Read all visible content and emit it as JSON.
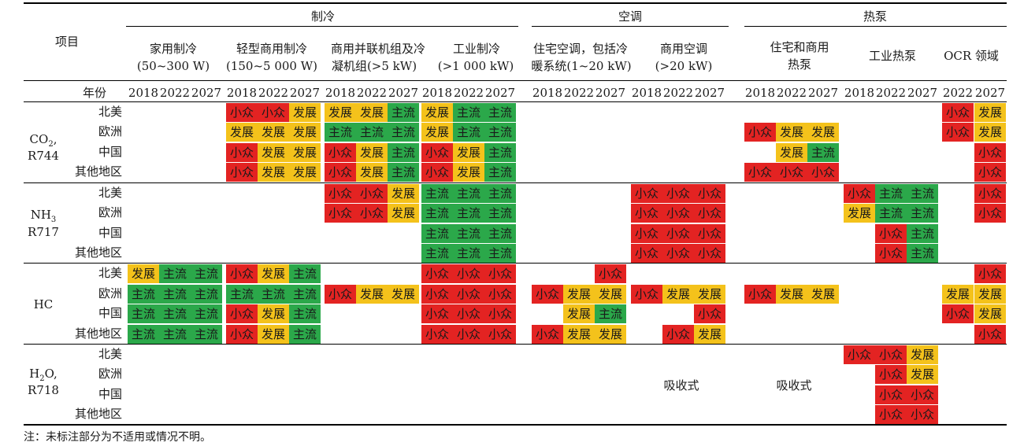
{
  "header": {
    "item": "项目",
    "groups": [
      "制冷",
      "空调",
      "热泵"
    ],
    "columns": [
      {
        "l1": "家用制冷",
        "l2": "(50~300 W)"
      },
      {
        "l1": "轻型商用制冷",
        "l2": "(150~5 000 W)"
      },
      {
        "l1": "商用并联机组及冷",
        "l2": "凝机组(>5 kW)"
      },
      {
        "l1": "工业制冷",
        "l2": "(>1 000 kW)"
      },
      {
        "l1": "住宅空调，包括冷",
        "l2": "暖系统(1~20 kW)"
      },
      {
        "l1": "商用空调",
        "l2": "(>20 kW)"
      },
      {
        "l1": "住宅和商用",
        "l2": "热泵"
      },
      {
        "l1": "工业热泵",
        "l2": ""
      },
      {
        "l1": "OCR 领域",
        "l2": ""
      }
    ],
    "year_label": "年份",
    "years": [
      "2018",
      "2022",
      "2027",
      "2018",
      "2022",
      "2027",
      "2018",
      "2022",
      "2027",
      "2018",
      "2022",
      "2027",
      "2018",
      "2022",
      "2027",
      "2018",
      "2022",
      "2027",
      "2018",
      "2022",
      "2027",
      "2018",
      "2022",
      "2027",
      "2022",
      "2027"
    ]
  },
  "refrigerants": [
    {
      "formula": "CO",
      "sub": "2",
      "tail": ",",
      "code": "R744"
    },
    {
      "formula": "NH",
      "sub": "3",
      "tail": "",
      "code": "R717"
    },
    {
      "formula": "HC",
      "sub": "",
      "tail": "",
      "code": ""
    },
    {
      "formula": "H",
      "sub": "2",
      "tail": "O,",
      "code": "R718"
    }
  ],
  "regions": [
    "北美",
    "欧洲",
    "中国",
    "其他地区"
  ],
  "legend": {
    "niche": {
      "label": "小众",
      "color": "#e32322"
    },
    "developing": {
      "label": "发展",
      "color": "#f4c21b"
    },
    "mainstream": {
      "label": "主流",
      "color": "#2ba84a"
    }
  },
  "rows": [
    {
      "region": "北美",
      "cells": [
        "",
        "",
        "",
        "小众",
        "小众",
        "发展",
        "发展",
        "发展",
        "主流",
        "发展",
        "主流",
        "主流",
        "",
        "",
        "",
        "",
        "",
        "",
        "",
        "",
        "",
        "",
        "",
        "",
        "小众",
        "发展"
      ]
    },
    {
      "region": "欧洲",
      "cells": [
        "",
        "",
        "",
        "发展",
        "发展",
        "发展",
        "主流",
        "主流",
        "主流",
        "发展",
        "主流",
        "主流",
        "",
        "",
        "",
        "",
        "",
        "",
        "小众",
        "发展",
        "发展",
        "",
        "",
        "",
        "小众",
        "发展"
      ]
    },
    {
      "region": "中国",
      "cells": [
        "",
        "",
        "",
        "小众",
        "发展",
        "发展",
        "小众",
        "发展",
        "主流",
        "小众",
        "发展",
        "主流",
        "",
        "",
        "",
        "",
        "",
        "",
        "",
        "发展",
        "主流",
        "",
        "",
        "",
        "",
        "小众"
      ]
    },
    {
      "region": "其他地区",
      "cells": [
        "",
        "",
        "",
        "小众",
        "发展",
        "发展",
        "小众",
        "发展",
        "主流",
        "小众",
        "发展",
        "主流",
        "",
        "",
        "",
        "",
        "",
        "",
        "小众",
        "小众",
        "小众",
        "",
        "",
        "",
        "",
        "小众"
      ]
    },
    {
      "region": "北美",
      "cells": [
        "",
        "",
        "",
        "",
        "",
        "",
        "小众",
        "小众",
        "发展",
        "主流",
        "主流",
        "主流",
        "",
        "",
        "",
        "小众",
        "小众",
        "小众",
        "",
        "",
        "",
        "小众",
        "主流",
        "主流",
        "",
        "小众"
      ]
    },
    {
      "region": "欧洲",
      "cells": [
        "",
        "",
        "",
        "",
        "",
        "",
        "小众",
        "小众",
        "发展",
        "主流",
        "主流",
        "主流",
        "",
        "",
        "",
        "小众",
        "小众",
        "小众",
        "",
        "",
        "",
        "发展",
        "主流",
        "主流",
        "",
        "小众"
      ]
    },
    {
      "region": "中国",
      "cells": [
        "",
        "",
        "",
        "",
        "",
        "",
        "",
        "",
        "",
        "主流",
        "主流",
        "主流",
        "",
        "",
        "",
        "小众",
        "小众",
        "小众",
        "",
        "",
        "",
        "",
        "小众",
        "主流",
        "",
        ""
      ]
    },
    {
      "region": "其他地区",
      "cells": [
        "",
        "",
        "",
        "",
        "",
        "",
        "",
        "",
        "",
        "主流",
        "主流",
        "主流",
        "",
        "",
        "",
        "小众",
        "小众",
        "小众",
        "",
        "",
        "",
        "",
        "小众",
        "主流",
        "",
        ""
      ]
    },
    {
      "region": "北美",
      "cells": [
        "发展",
        "主流",
        "主流",
        "小众",
        "发展",
        "主流",
        "",
        "",
        "",
        "小众",
        "小众",
        "小众",
        "",
        "",
        "小众",
        "",
        "",
        "",
        "",
        "",
        "",
        "",
        "",
        "",
        "",
        "小众"
      ]
    },
    {
      "region": "欧洲",
      "cells": [
        "主流",
        "主流",
        "主流",
        "主流",
        "主流",
        "主流",
        "小众",
        "发展",
        "发展",
        "小众",
        "小众",
        "小众",
        "小众",
        "发展",
        "发展",
        "小众",
        "发展",
        "发展",
        "小众",
        "发展",
        "发展",
        "",
        "",
        "",
        "发展",
        "发展"
      ]
    },
    {
      "region": "中国",
      "cells": [
        "主流",
        "主流",
        "主流",
        "小众",
        "发展",
        "主流",
        "",
        "",
        "",
        "小众",
        "小众",
        "小众",
        "",
        "发展",
        "主流",
        "",
        "",
        "小众",
        "",
        "",
        "",
        "",
        "",
        "",
        "小众",
        "发展"
      ]
    },
    {
      "region": "其他地区",
      "cells": [
        "主流",
        "主流",
        "主流",
        "小众",
        "发展",
        "主流",
        "",
        "",
        "",
        "小众",
        "小众",
        "小众",
        "小众",
        "发展",
        "发展",
        "",
        "小众",
        "发展",
        "",
        "",
        "",
        "",
        "",
        "",
        "",
        "小众"
      ]
    },
    {
      "region": "北美",
      "cells": [
        "",
        "",
        "",
        "",
        "",
        "",
        "",
        "",
        "",
        "",
        "",
        "",
        "",
        "",
        "",
        "",
        "",
        "",
        "",
        "",
        "",
        "小众",
        "小众",
        "发展",
        "",
        ""
      ]
    },
    {
      "region": "欧洲",
      "cells": [
        "",
        "",
        "",
        "",
        "",
        "",
        "",
        "",
        "",
        "",
        "",
        "",
        "",
        "",
        "",
        "",
        "",
        "",
        "",
        "",
        "",
        "",
        "小众",
        "发展",
        "",
        ""
      ]
    },
    {
      "region": "中国",
      "cells": [
        "",
        "",
        "",
        "",
        "",
        "",
        "",
        "",
        "",
        "",
        "",
        "",
        "",
        "",
        "",
        "",
        "",
        "",
        "",
        "",
        "",
        "",
        "小众",
        "小众",
        "",
        ""
      ]
    },
    {
      "region": "其他地区",
      "cells": [
        "",
        "",
        "",
        "",
        "",
        "",
        "",
        "",
        "",
        "",
        "",
        "",
        "",
        "",
        "",
        "",
        "",
        "",
        "",
        "",
        "",
        "",
        "小众",
        "小众",
        "",
        ""
      ]
    }
  ],
  "notes": {
    "absorption_ac": "吸收式",
    "absorption_hp": "吸收式",
    "footnote": "注：未标注部分为不适用或情况不明。"
  }
}
